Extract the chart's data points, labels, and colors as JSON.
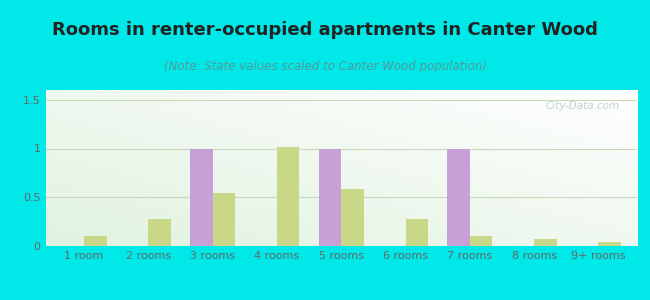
{
  "title": "Rooms in renter-occupied apartments in Canter Wood",
  "subtitle": "(Note: State values scaled to Canter Wood population)",
  "categories": [
    "1 room",
    "2 rooms",
    "3 rooms",
    "4 rooms",
    "5 rooms",
    "6 rooms",
    "7 rooms",
    "8 rooms",
    "9+ rooms"
  ],
  "canter_wood": [
    0,
    0,
    1.0,
    0,
    1.0,
    0,
    1.0,
    0,
    0
  ],
  "vancouver": [
    0.1,
    0.28,
    0.54,
    1.02,
    0.58,
    0.28,
    0.1,
    0.07,
    0.04
  ],
  "canter_wood_color": "#c8a0d8",
  "vancouver_color": "#c8d888",
  "outer_bg": "#00e8e8",
  "ylim": [
    0,
    1.6
  ],
  "yticks": [
    0,
    0.5,
    1,
    1.5
  ],
  "bar_width": 0.35,
  "title_fontsize": 13,
  "subtitle_fontsize": 8.5,
  "legend_fontsize": 9,
  "tick_fontsize": 8,
  "watermark_text": "City-Data.com",
  "watermark_color": "#b8ccd4",
  "grid_color": "#c8d8b8",
  "title_color": "#222222",
  "subtitle_color": "#559999",
  "tick_color": "#666666"
}
